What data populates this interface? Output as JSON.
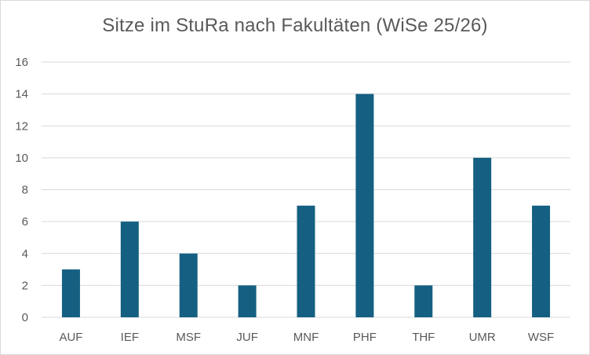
{
  "chart_data": {
    "type": "bar",
    "title": "Sitze im StuRa nach Fakultäten (WiSe 25/26)",
    "categories": [
      "AUF",
      "IEF",
      "MSF",
      "JUF",
      "MNF",
      "PHF",
      "THF",
      "UMR",
      "WSF"
    ],
    "values": [
      3,
      6,
      4,
      2,
      7,
      14,
      2,
      10,
      7
    ],
    "xlabel": "",
    "ylabel": "",
    "ylim": [
      0,
      16
    ],
    "yticks": [
      0,
      2,
      4,
      6,
      8,
      10,
      12,
      14,
      16
    ],
    "grid": true,
    "legend": "none",
    "colors": {
      "bar": "#156082",
      "grid": "#d9d9d9",
      "text": "#595959"
    }
  }
}
